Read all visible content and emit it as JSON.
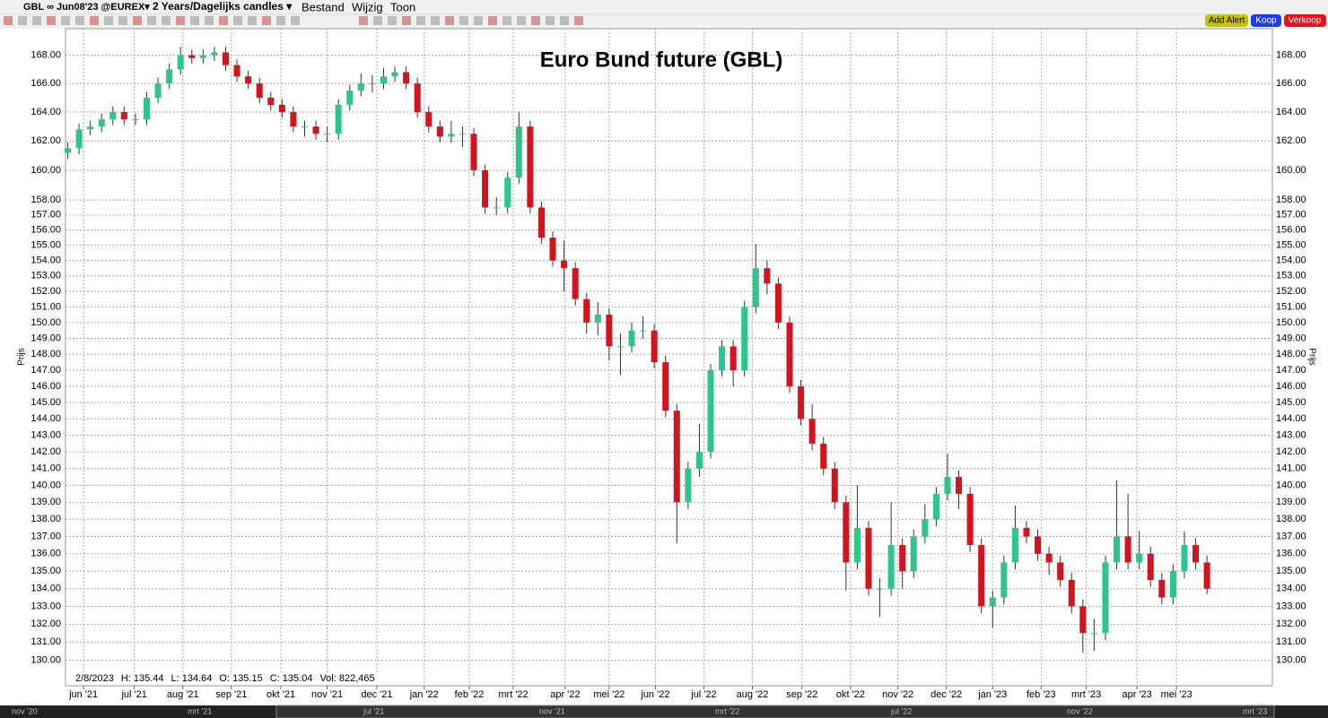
{
  "toolbar": {
    "symbol": "GBL ∞ Jun08'23 @EUREX▾",
    "period": "2 Years/Dagelijks candles ▾",
    "menus": [
      "Bestand",
      "Wijzig",
      "Toon"
    ],
    "buttons": [
      "Add Alert",
      "Koop",
      "Verkoop"
    ]
  },
  "chart_data": {
    "type": "candlestick",
    "title": "Euro Bund future (GBL)",
    "y_label": "Prijs",
    "log_scale": true,
    "grid": true,
    "up_color": "#2fc58a",
    "down_color": "#d2141e",
    "info": [
      "2/8/2023",
      "H: 135.44",
      "L: 134.64",
      "O: 135.15",
      "C: 135.04",
      "Vol: 822,465"
    ],
    "xlim": [
      -0.2,
      106.8
    ],
    "ylim": [
      128.6,
      169.9
    ],
    "xticks": [
      {
        "value": 1.4,
        "label": "jun '21"
      },
      {
        "value": 5.9,
        "label": "jul '21"
      },
      {
        "value": 10.2,
        "label": "aug '21"
      },
      {
        "value": 14.5,
        "label": "sep '21"
      },
      {
        "value": 18.9,
        "label": "okt '21"
      },
      {
        "value": 23.0,
        "label": "nov '21"
      },
      {
        "value": 27.4,
        "label": "dec '21"
      },
      {
        "value": 31.6,
        "label": "jan '22"
      },
      {
        "value": 35.6,
        "label": "feb '22"
      },
      {
        "value": 39.5,
        "label": "mrt '22"
      },
      {
        "value": 44.1,
        "label": "apr '22"
      },
      {
        "value": 48.0,
        "label": "mei '22"
      },
      {
        "value": 52.1,
        "label": "jun '22"
      },
      {
        "value": 56.4,
        "label": "jul '22"
      },
      {
        "value": 60.7,
        "label": "aug '22"
      },
      {
        "value": 65.1,
        "label": "sep '22"
      },
      {
        "value": 69.4,
        "label": "okt '22"
      },
      {
        "value": 73.6,
        "label": "nov '22"
      },
      {
        "value": 77.9,
        "label": "dec '22"
      },
      {
        "value": 82.0,
        "label": "jan '23"
      },
      {
        "value": 86.3,
        "label": "feb '23"
      },
      {
        "value": 90.3,
        "label": "mrt '23"
      },
      {
        "value": 94.8,
        "label": "apr '23"
      },
      {
        "value": 98.3,
        "label": "mei '23"
      }
    ],
    "yticks": [
      {
        "value": 130,
        "label": "130.00"
      },
      {
        "value": 131,
        "label": "131.00"
      },
      {
        "value": 132,
        "label": "132.00"
      },
      {
        "value": 133,
        "label": "133.00"
      },
      {
        "value": 134,
        "label": "134.00"
      },
      {
        "value": 135,
        "label": "135.00"
      },
      {
        "value": 136,
        "label": "136.00"
      },
      {
        "value": 137,
        "label": "137.00"
      },
      {
        "value": 138,
        "label": "138.00"
      },
      {
        "value": 139,
        "label": "139.00"
      },
      {
        "value": 140,
        "label": "140.00"
      },
      {
        "value": 141,
        "label": "141.00"
      },
      {
        "value": 142,
        "label": "142.00"
      },
      {
        "value": 143,
        "label": "143.00"
      },
      {
        "value": 144,
        "label": "144.00"
      },
      {
        "value": 145,
        "label": "145.00"
      },
      {
        "value": 146,
        "label": "146.00"
      },
      {
        "value": 147,
        "label": "147.00"
      },
      {
        "value": 148,
        "label": "148.00"
      },
      {
        "value": 149,
        "label": "149.00"
      },
      {
        "value": 150,
        "label": "150.00"
      },
      {
        "value": 151,
        "label": "151.00"
      },
      {
        "value": 152,
        "label": "152.00"
      },
      {
        "value": 153,
        "label": "153.00"
      },
      {
        "value": 154,
        "label": "154.00"
      },
      {
        "value": 155,
        "label": "155.00"
      },
      {
        "value": 156,
        "label": "156.00"
      },
      {
        "value": 157,
        "label": "157.00"
      },
      {
        "value": 158,
        "label": "158.00"
      },
      {
        "value": 160,
        "label": "160.00"
      },
      {
        "value": 162,
        "label": "162.00"
      },
      {
        "value": 164,
        "label": "164.00"
      },
      {
        "value": 166,
        "label": "166.00"
      },
      {
        "value": 168,
        "label": "168.00"
      }
    ],
    "open": [
      161.2,
      161.5,
      162.8,
      163.0,
      163.5,
      164.0,
      163.5,
      163.5,
      165.0,
      166.0,
      167.0,
      168.0,
      167.8,
      168.0,
      168.2,
      167.3,
      166.5,
      166.0,
      165.0,
      164.5,
      164.0,
      163.0,
      163.0,
      162.5,
      162.5,
      164.5,
      165.5,
      166.0,
      166.0,
      166.5,
      166.8,
      166.0,
      164.0,
      163.0,
      162.3,
      162.5,
      162.5,
      160.0,
      157.5,
      157.5,
      159.5,
      163.0,
      157.5,
      155.5,
      154.0,
      153.5,
      151.5,
      150.0,
      150.5,
      148.5,
      148.5,
      149.5,
      149.5,
      147.5,
      144.5,
      139.0,
      141.0,
      142.0,
      147.0,
      148.5,
      147.0,
      151.0,
      153.5,
      152.5,
      150.0,
      146.0,
      144.0,
      142.5,
      141.0,
      139.0,
      135.5,
      137.5,
      134.0,
      134.0,
      136.5,
      135.0,
      137.0,
      138.0,
      139.5,
      140.5,
      139.5,
      136.5,
      133.0,
      133.5,
      135.5,
      137.5,
      137.0,
      136.0,
      135.5,
      134.5,
      133.0,
      131.5,
      131.5,
      135.5,
      137.0,
      135.5,
      136.0,
      134.5,
      133.5,
      135.0,
      136.5,
      135.5
    ],
    "high": [
      161.9,
      163.2,
      163.4,
      163.9,
      164.4,
      164.4,
      163.9,
      165.4,
      166.4,
      167.4,
      168.6,
      168.4,
      168.4,
      168.6,
      168.6,
      167.7,
      166.9,
      166.4,
      165.4,
      164.9,
      164.4,
      163.4,
      163.4,
      163.0,
      164.9,
      165.9,
      166.7,
      166.6,
      167.1,
      167.2,
      167.2,
      166.4,
      164.4,
      163.4,
      163.4,
      163.0,
      162.9,
      160.4,
      158.2,
      159.9,
      164.0,
      163.4,
      157.9,
      155.9,
      155.3,
      153.9,
      151.9,
      151.3,
      150.9,
      149.3,
      150.0,
      150.4,
      149.9,
      147.9,
      144.9,
      141.4,
      143.7,
      147.4,
      148.9,
      148.9,
      151.4,
      155.1,
      154.0,
      152.9,
      150.4,
      146.4,
      144.9,
      142.9,
      141.4,
      139.4,
      140.0,
      137.9,
      134.6,
      139.0,
      136.9,
      137.4,
      138.9,
      139.9,
      141.9,
      140.9,
      139.9,
      136.9,
      133.9,
      135.9,
      138.8,
      137.9,
      137.4,
      136.4,
      135.9,
      134.9,
      133.4,
      132.3,
      135.9,
      140.3,
      139.5,
      137.3,
      136.4,
      134.9,
      135.4,
      137.3,
      136.9,
      135.9
    ],
    "low": [
      160.8,
      161.1,
      162.4,
      162.6,
      163.1,
      163.1,
      163.1,
      163.1,
      164.6,
      165.6,
      166.6,
      167.4,
      167.4,
      167.6,
      166.9,
      166.1,
      165.6,
      164.6,
      164.1,
      163.6,
      162.6,
      162.3,
      162.1,
      161.9,
      162.1,
      164.1,
      165.1,
      165.4,
      165.6,
      166.1,
      165.6,
      163.6,
      162.6,
      161.9,
      161.9,
      161.6,
      159.6,
      157.1,
      157.0,
      157.1,
      159.1,
      157.1,
      155.1,
      153.6,
      152.0,
      151.1,
      149.3,
      149.2,
      147.6,
      146.7,
      148.1,
      149.0,
      147.1,
      144.1,
      136.6,
      138.6,
      140.5,
      141.6,
      146.6,
      146.0,
      146.6,
      150.6,
      151.8,
      149.6,
      145.6,
      143.6,
      142.1,
      140.6,
      138.6,
      133.9,
      135.1,
      133.6,
      132.4,
      133.6,
      134.0,
      134.6,
      136.6,
      137.6,
      139.1,
      138.6,
      136.1,
      132.6,
      131.8,
      133.1,
      135.1,
      136.6,
      135.6,
      134.8,
      134.1,
      132.6,
      130.4,
      130.5,
      131.1,
      135.1,
      135.1,
      135.1,
      134.1,
      133.1,
      133.1,
      134.6,
      135.1,
      133.7
    ],
    "close": [
      161.5,
      162.8,
      163.0,
      163.5,
      164.0,
      163.5,
      163.5,
      165.0,
      166.0,
      167.0,
      168.0,
      167.8,
      168.0,
      168.2,
      167.3,
      166.5,
      166.0,
      165.0,
      164.5,
      164.0,
      163.0,
      163.0,
      162.5,
      162.5,
      164.5,
      165.5,
      166.0,
      166.0,
      166.5,
      166.8,
      166.0,
      164.0,
      163.0,
      162.3,
      162.5,
      162.5,
      160.0,
      157.5,
      157.5,
      159.5,
      163.0,
      157.5,
      155.5,
      154.0,
      153.5,
      151.5,
      150.0,
      150.5,
      148.5,
      148.5,
      149.5,
      149.5,
      147.5,
      144.5,
      139.0,
      141.0,
      142.0,
      147.0,
      148.5,
      147.0,
      151.0,
      153.5,
      152.5,
      150.0,
      146.0,
      144.0,
      142.5,
      141.0,
      139.0,
      135.5,
      137.5,
      134.0,
      134.0,
      136.5,
      135.0,
      137.0,
      138.0,
      139.5,
      140.5,
      139.5,
      136.5,
      133.0,
      133.5,
      135.5,
      137.5,
      137.0,
      136.0,
      135.5,
      134.5,
      133.0,
      131.5,
      131.5,
      135.5,
      137.0,
      135.5,
      136.0,
      134.5,
      133.5,
      135.0,
      136.5,
      135.5,
      134.0
    ]
  },
  "navigator": [
    "nov '20",
    "mrt '21",
    "jul '21",
    "nov '21",
    "mrt '22",
    "jul '22",
    "nov '22",
    "mrt '23"
  ]
}
